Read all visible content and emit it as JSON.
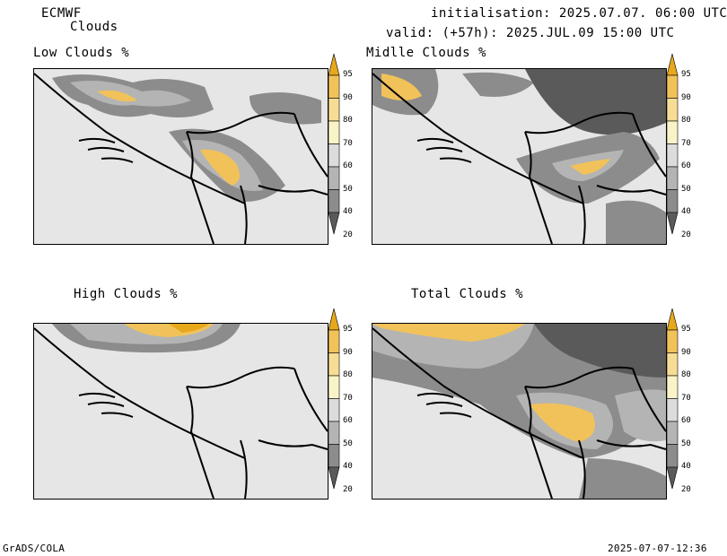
{
  "header": {
    "model": "ECMWF",
    "product": "Clouds",
    "init_line": "initialisation: 2025.07.07. 06:00 UTC",
    "valid_line": "valid: (+57h): 2025.JUL.09 15:00 UTC"
  },
  "panels": [
    {
      "title": "Low Clouds %"
    },
    {
      "title": "Midlle Clouds %"
    },
    {
      "title": "High Clouds %"
    },
    {
      "title": "Total Clouds %"
    }
  ],
  "colorbar": {
    "levels": [
      "95",
      "90",
      "80",
      "70",
      "60",
      "50",
      "40",
      "20"
    ],
    "colors": [
      "#e8a81c",
      "#f1c25a",
      "#f6dc95",
      "#f8f4c8",
      "#dcdcdc",
      "#b4b4b4",
      "#8c8c8c",
      "#5a5a5a"
    ]
  },
  "footer": {
    "left": "GrADS/COLA",
    "right": "2025-07-07-12:36"
  }
}
